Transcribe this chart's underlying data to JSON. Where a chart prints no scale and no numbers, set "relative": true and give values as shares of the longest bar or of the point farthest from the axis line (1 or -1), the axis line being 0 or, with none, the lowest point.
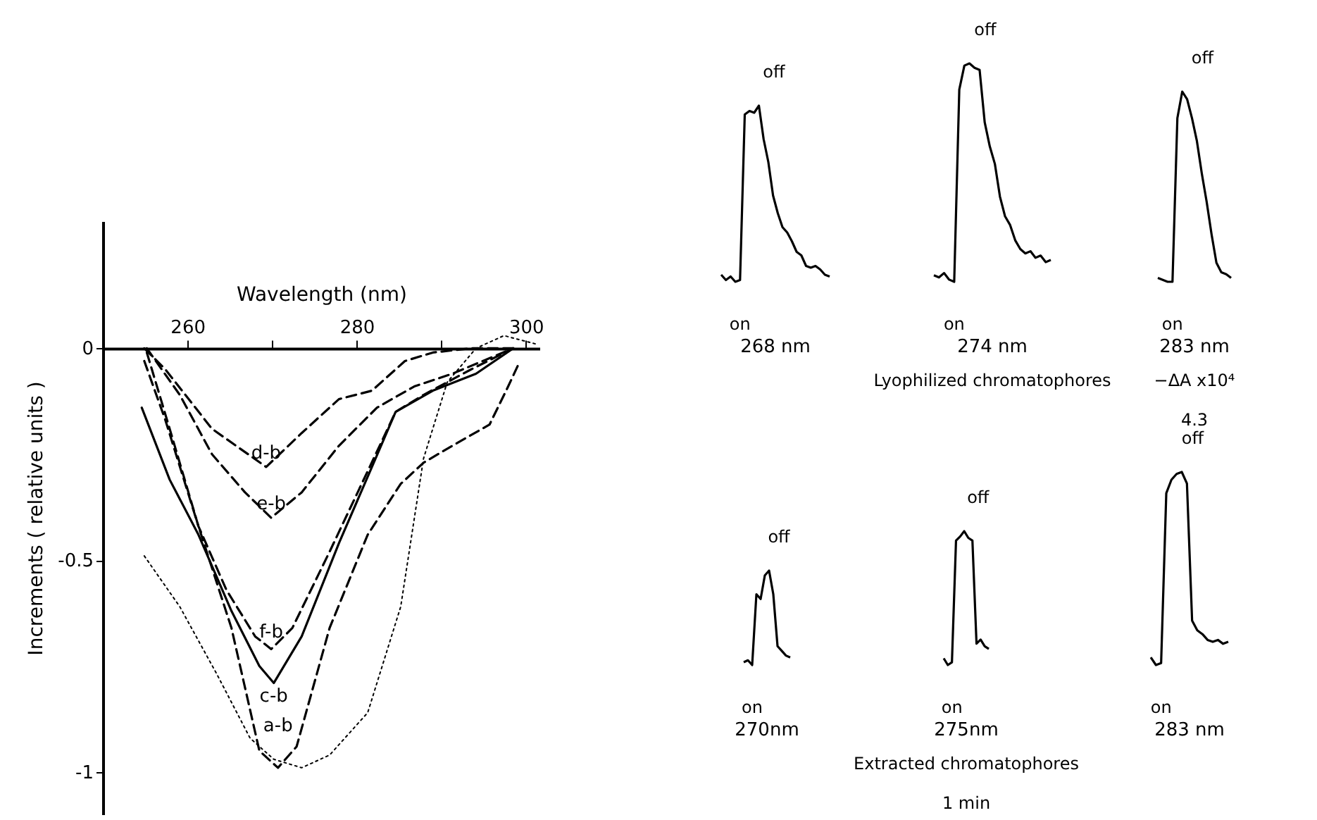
{
  "chart_data": [
    {
      "type": "line",
      "xlabel": "Wavelength (nm)",
      "ylabel": "Increments ( relative units )",
      "xlim": [
        250,
        301.6
      ],
      "ylim": [
        -1.1,
        0.3
      ],
      "xticks": [
        260,
        {
          "value": 270,
          "label": null
        },
        280,
        {
          "value": 290,
          "label": null
        },
        300
      ],
      "yticks": [
        {
          "value": 0,
          "label": "0"
        },
        {
          "value": -0.5,
          "label": "-0.5"
        },
        {
          "value": -1,
          "label": "-1"
        }
      ],
      "grid": false,
      "marker": "none",
      "series": [
        {
          "name": "d-b",
          "color": "#000000",
          "line_style": "dashed",
          "x": [
            254.9,
            257.4,
            262.9,
            269.3,
            273.5,
            277.9,
            281.8,
            285.7,
            289,
            293.5,
            298.5
          ],
          "values": [
            0,
            -0.05,
            -0.19,
            -0.28,
            -0.2,
            -0.12,
            -0.1,
            -0.03,
            -0.01,
            0,
            0
          ]
        },
        {
          "name": "e-b",
          "color": "#000000",
          "line_style": "dashed",
          "x": [
            255.2,
            259.1,
            262.9,
            266.8,
            269.9,
            273.5,
            277.9,
            282.4,
            286.8,
            291.3,
            298.5
          ],
          "values": [
            0,
            -0.11,
            -0.25,
            -0.34,
            -0.4,
            -0.34,
            -0.23,
            -0.14,
            -0.09,
            -0.06,
            0
          ]
        },
        {
          "name": "f-b",
          "color": "#000000",
          "line_style": "dashed",
          "x": [
            254.9,
            257.4,
            261.3,
            264.6,
            268,
            269.9,
            272.4,
            276.8,
            281.3,
            284.6,
            287.9,
            293.5,
            298.5
          ],
          "values": [
            -0.03,
            -0.17,
            -0.42,
            -0.57,
            -0.68,
            -0.71,
            -0.66,
            -0.48,
            -0.29,
            -0.15,
            -0.11,
            -0.05,
            0
          ]
        },
        {
          "name": "c-b",
          "color": "#000000",
          "line_style": "solid",
          "x": [
            254.6,
            257.9,
            261.3,
            265.2,
            268.5,
            270.2,
            273.5,
            277.9,
            281.8,
            284.6,
            289,
            294.1,
            298.5
          ],
          "values": [
            -0.14,
            -0.31,
            -0.44,
            -0.62,
            -0.75,
            -0.79,
            -0.68,
            -0.46,
            -0.28,
            -0.15,
            -0.1,
            -0.06,
            0
          ]
        },
        {
          "name": "a-b",
          "color": "#000000",
          "line_style": "dashed",
          "x": [
            255.2,
            257.9,
            261.3,
            265.2,
            268.5,
            270.7,
            272.9,
            276.8,
            281.3,
            285.2,
            287.9,
            291.3,
            295.7,
            297.9,
            299.3
          ],
          "values": [
            -0.01,
            -0.19,
            -0.42,
            -0.66,
            -0.95,
            -0.99,
            -0.94,
            -0.66,
            -0.44,
            -0.32,
            -0.27,
            -0.23,
            -0.18,
            -0.09,
            -0.03
          ]
        },
        {
          "color": "#000000",
          "line_style": "dotted",
          "x": [
            254.9,
            259.1,
            263.5,
            267.4,
            270.2,
            273.5,
            276.8,
            281.3,
            285.2,
            287.9,
            290.7,
            294.1,
            297.4,
            301.2
          ],
          "values": [
            -0.49,
            -0.61,
            -0.77,
            -0.92,
            -0.97,
            -0.99,
            -0.96,
            -0.86,
            -0.61,
            -0.26,
            -0.08,
            0,
            0.03,
            0.01
          ]
        }
      ]
    },
    {
      "type": "line",
      "relative": true,
      "xlabel": "268 nm",
      "color": "#000000",
      "annotations": [
        "off",
        "on"
      ],
      "categories": [
        null,
        null,
        null,
        null,
        null,
        null,
        null,
        null,
        null,
        null,
        null,
        null,
        null,
        null,
        null,
        null,
        null,
        null,
        null,
        null,
        null,
        null,
        null,
        null
      ],
      "values": [
        0.04,
        0.01,
        0.03,
        0,
        0.01,
        0.95,
        0.97,
        0.96,
        1,
        0.81,
        0.68,
        0.49,
        0.39,
        0.31,
        0.28,
        0.23,
        0.17,
        0.15,
        0.09,
        0.08,
        0.09,
        0.07,
        0.04,
        0.03
      ]
    },
    {
      "type": "line",
      "relative": true,
      "xlabel": "274 nm",
      "color": "#000000",
      "annotations": [
        "off",
        "on",
        "Lyophilized chromatophores"
      ],
      "categories": [
        null,
        null,
        null,
        null,
        null,
        null,
        null,
        null,
        null,
        null,
        null,
        null,
        null,
        null,
        null,
        null,
        null,
        null,
        null,
        null,
        null,
        null,
        null,
        null
      ],
      "values": [
        0.03,
        0.02,
        0.04,
        0.01,
        0,
        0.88,
        0.99,
        1,
        0.98,
        0.97,
        0.73,
        0.62,
        0.54,
        0.39,
        0.3,
        0.26,
        0.19,
        0.15,
        0.13,
        0.14,
        0.11,
        0.12,
        0.09,
        0.1
      ]
    },
    {
      "type": "line",
      "relative": true,
      "xlabel": "283 nm",
      "color": "#000000",
      "annotations": [
        "off",
        "on",
        "−ΔA x10⁴",
        "4.3"
      ],
      "categories": [
        null,
        null,
        null,
        null,
        null,
        null,
        null,
        null,
        null,
        null,
        null,
        null,
        null,
        null,
        null,
        null
      ],
      "values": [
        0.02,
        0.01,
        0,
        0,
        0.86,
        1,
        0.96,
        0.86,
        0.74,
        0.57,
        0.42,
        0.25,
        0.1,
        0.05,
        0.04,
        0.02
      ]
    },
    {
      "type": "line",
      "relative": true,
      "xlabel": "270nm",
      "color": "#000000",
      "annotations": [
        "off",
        "on"
      ],
      "categories": [
        null,
        null,
        null,
        null,
        null,
        null,
        null,
        null,
        null,
        null,
        null,
        null
      ],
      "values": [
        0.03,
        0.05,
        0,
        0.75,
        0.7,
        0.95,
        1,
        0.75,
        0.2,
        0.15,
        0.1,
        0.08
      ]
    },
    {
      "type": "line",
      "relative": true,
      "xlabel": "275nm",
      "color": "#000000",
      "annotations": [
        "off",
        "on",
        "Extracted  chromatophores",
        "1 min"
      ],
      "categories": [
        null,
        null,
        null,
        null,
        null,
        null,
        null,
        null,
        null,
        null,
        null,
        null
      ],
      "values": [
        0.05,
        0,
        0.02,
        0.93,
        0.96,
        1,
        0.95,
        0.93,
        0.16,
        0.19,
        0.14,
        0.12
      ]
    },
    {
      "type": "line",
      "relative": true,
      "xlabel": "283 nm",
      "color": "#000000",
      "annotations": [
        "off",
        "on"
      ],
      "categories": [
        null,
        null,
        null,
        null,
        null,
        null,
        null,
        null,
        null,
        null,
        null,
        null,
        null,
        null,
        null,
        null
      ],
      "values": [
        0.04,
        0,
        0.01,
        0.89,
        0.96,
        0.99,
        1,
        0.94,
        0.23,
        0.18,
        0.16,
        0.13,
        0.12,
        0.13,
        0.11,
        0.12
      ]
    }
  ]
}
